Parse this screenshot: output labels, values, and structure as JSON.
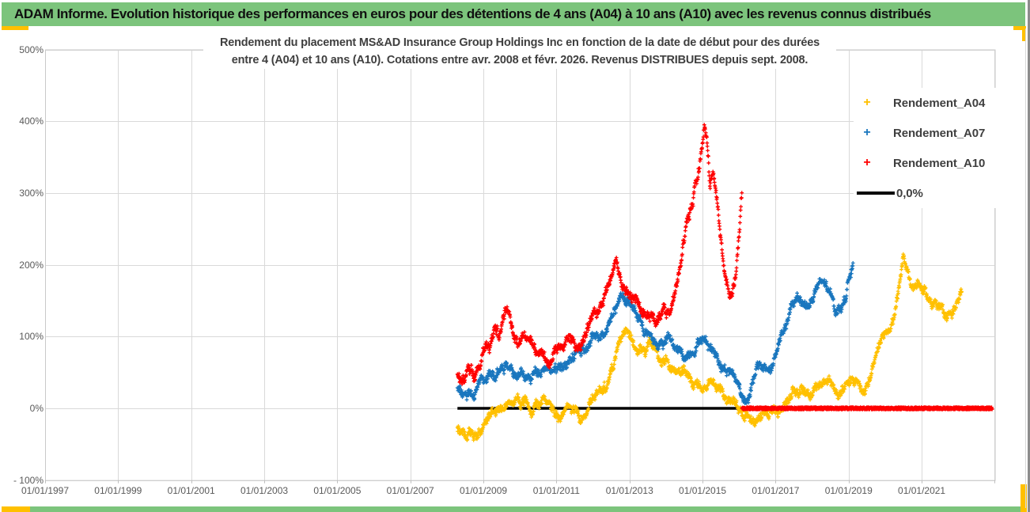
{
  "header": {
    "title": "ADAM Informe. Evolution historique des performances en euros pour des détentions de 4 ans (A04) à 10 ans (A10) avec les revenus connus distribués"
  },
  "chart": {
    "title_line1": "Rendement du placement MS&AD Insurance Group Holdings Inc en fonction de la date de début pour des durées",
    "title_line2": "entre 4 (A04) et 10 ans (A10). Cotations entre avr. 2008 et févr. 2026. Revenus DISTRIBUES depuis sept. 2008."
  },
  "colors": {
    "header_green": "#7cc47c",
    "accent_gold": "#ffc000",
    "grid": "#d9d9d9",
    "axis_text": "#595959",
    "title_text": "#3f3f3f",
    "series_a04": "#ffc000",
    "series_a07": "#1976be",
    "series_a10": "#ff0000",
    "zero_line": "#000000"
  },
  "chart_data": {
    "type": "scatter",
    "title": "Rendement du placement MS&AD Insurance Group Holdings Inc en fonction de la date de début pour des durées entre 4 (A04) et 10 ans (A10). Cotations entre avr. 2008 et févr. 2026. Revenus DISTRIBUES depuis sept. 2008.",
    "marker": "plus",
    "legend_position": "right-overlay",
    "x_axis": {
      "type": "date-start-of-holding",
      "tick_labels": [
        "01/01/1997",
        "01/01/1999",
        "01/01/2001",
        "01/01/2003",
        "01/01/2005",
        "01/01/2007",
        "01/01/2009",
        "01/01/2011",
        "01/01/2013",
        "01/01/2015",
        "01/01/2017",
        "01/01/2019",
        "01/01/2021"
      ],
      "tick_years": [
        1997,
        1999,
        2001,
        2003,
        2005,
        2007,
        2009,
        2011,
        2013,
        2015,
        2017,
        2019,
        2021
      ],
      "min_year": 1997,
      "max_year": 2023,
      "gridlines": true
    },
    "y_axis": {
      "tick_labels": [
        "500%",
        "400%",
        "300%",
        "200%",
        "100%",
        "0%",
        "- 100%"
      ],
      "tick_values": [
        500,
        400,
        300,
        200,
        100,
        0,
        -100
      ],
      "min": -100,
      "max": 500,
      "unit": "%",
      "gridlines": true
    },
    "series": [
      {
        "name": "Rendement_A04",
        "kind": "scatter",
        "color": "#ffc000",
        "holding_years": 4,
        "start": 2008.29,
        "end": 2022.1,
        "scatter_spread_pct": 9,
        "trend_points": [
          [
            2008.29,
            -28
          ],
          [
            2008.45,
            -38
          ],
          [
            2008.6,
            -34
          ],
          [
            2008.75,
            -44
          ],
          [
            2008.9,
            -37
          ],
          [
            2009.0,
            -26
          ],
          [
            2009.2,
            -12
          ],
          [
            2009.35,
            -4
          ],
          [
            2009.5,
            2
          ],
          [
            2009.65,
            8
          ],
          [
            2009.8,
            3
          ],
          [
            2010.0,
            2
          ],
          [
            2010.15,
            8
          ],
          [
            2010.3,
            2
          ],
          [
            2010.45,
            10
          ],
          [
            2010.6,
            14
          ],
          [
            2010.75,
            8
          ],
          [
            2010.9,
            -2
          ],
          [
            2011.05,
            -10
          ],
          [
            2011.2,
            -14
          ],
          [
            2011.35,
            0
          ],
          [
            2011.5,
            4
          ],
          [
            2011.65,
            -8
          ],
          [
            2011.8,
            -10
          ],
          [
            2011.95,
            5
          ],
          [
            2012.1,
            22
          ],
          [
            2012.25,
            30
          ],
          [
            2012.4,
            38
          ],
          [
            2012.55,
            55
          ],
          [
            2012.7,
            78
          ],
          [
            2012.85,
            95
          ],
          [
            2013.0,
            108
          ],
          [
            2013.1,
            95
          ],
          [
            2013.25,
            80
          ],
          [
            2013.4,
            72
          ],
          [
            2013.55,
            85
          ],
          [
            2013.7,
            78
          ],
          [
            2013.85,
            65
          ],
          [
            2014.0,
            70
          ],
          [
            2014.15,
            60
          ],
          [
            2014.3,
            52
          ],
          [
            2014.5,
            47
          ],
          [
            2014.7,
            38
          ],
          [
            2014.9,
            34
          ],
          [
            2015.1,
            30
          ],
          [
            2015.3,
            27
          ],
          [
            2015.5,
            22
          ],
          [
            2015.7,
            12
          ],
          [
            2015.9,
            7
          ],
          [
            2016.1,
            -2
          ],
          [
            2016.3,
            -9
          ],
          [
            2016.5,
            -14
          ],
          [
            2016.7,
            -8
          ],
          [
            2016.9,
            -12
          ],
          [
            2017.1,
            2
          ],
          [
            2017.3,
            15
          ],
          [
            2017.5,
            26
          ],
          [
            2017.7,
            32
          ],
          [
            2017.9,
            28
          ],
          [
            2018.1,
            35
          ],
          [
            2018.3,
            42
          ],
          [
            2018.5,
            36
          ],
          [
            2018.65,
            24
          ],
          [
            2018.8,
            18
          ],
          [
            2019.0,
            32
          ],
          [
            2019.2,
            38
          ],
          [
            2019.4,
            30
          ],
          [
            2019.6,
            45
          ],
          [
            2019.8,
            72
          ],
          [
            2019.95,
            92
          ],
          [
            2020.1,
            112
          ],
          [
            2020.25,
            132
          ],
          [
            2020.4,
            168
          ],
          [
            2020.5,
            200
          ],
          [
            2020.6,
            188
          ],
          [
            2020.75,
            172
          ],
          [
            2020.9,
            178
          ],
          [
            2021.05,
            168
          ],
          [
            2021.2,
            148
          ],
          [
            2021.35,
            152
          ],
          [
            2021.5,
            138
          ],
          [
            2021.65,
            126
          ],
          [
            2021.8,
            133
          ],
          [
            2021.95,
            146
          ],
          [
            2022.1,
            156
          ]
        ]
      },
      {
        "name": "Rendement_A07",
        "kind": "scatter",
        "color": "#1976be",
        "holding_years": 7,
        "start": 2008.29,
        "end": 2019.12,
        "scatter_spread_pct": 9,
        "trend_points": [
          [
            2008.29,
            28
          ],
          [
            2008.45,
            18
          ],
          [
            2008.6,
            30
          ],
          [
            2008.75,
            16
          ],
          [
            2008.9,
            28
          ],
          [
            2009.05,
            42
          ],
          [
            2009.2,
            50
          ],
          [
            2009.35,
            45
          ],
          [
            2009.5,
            58
          ],
          [
            2009.65,
            68
          ],
          [
            2009.8,
            60
          ],
          [
            2009.95,
            48
          ],
          [
            2010.1,
            42
          ],
          [
            2010.25,
            38
          ],
          [
            2010.4,
            48
          ],
          [
            2010.55,
            58
          ],
          [
            2010.7,
            68
          ],
          [
            2010.85,
            60
          ],
          [
            2011.0,
            52
          ],
          [
            2011.15,
            64
          ],
          [
            2011.3,
            58
          ],
          [
            2011.45,
            68
          ],
          [
            2011.6,
            80
          ],
          [
            2011.75,
            72
          ],
          [
            2011.9,
            85
          ],
          [
            2012.05,
            95
          ],
          [
            2012.2,
            105
          ],
          [
            2012.35,
            118
          ],
          [
            2012.5,
            135
          ],
          [
            2012.65,
            150
          ],
          [
            2012.8,
            164
          ],
          [
            2012.9,
            157
          ],
          [
            2013.0,
            148
          ],
          [
            2013.15,
            135
          ],
          [
            2013.3,
            124
          ],
          [
            2013.45,
            108
          ],
          [
            2013.6,
            95
          ],
          [
            2013.75,
            88
          ],
          [
            2013.9,
            92
          ],
          [
            2014.05,
            97
          ],
          [
            2014.2,
            85
          ],
          [
            2014.35,
            75
          ],
          [
            2014.5,
            70
          ],
          [
            2014.65,
            80
          ],
          [
            2014.8,
            92
          ],
          [
            2014.95,
            104
          ],
          [
            2015.1,
            97
          ],
          [
            2015.25,
            88
          ],
          [
            2015.4,
            75
          ],
          [
            2015.55,
            65
          ],
          [
            2015.7,
            58
          ],
          [
            2015.85,
            50
          ],
          [
            2016.0,
            32
          ],
          [
            2016.12,
            14
          ],
          [
            2016.25,
            22
          ],
          [
            2016.4,
            42
          ],
          [
            2016.55,
            58
          ],
          [
            2016.7,
            56
          ],
          [
            2016.85,
            52
          ],
          [
            2017.0,
            72
          ],
          [
            2017.15,
            98
          ],
          [
            2017.3,
            118
          ],
          [
            2017.45,
            138
          ],
          [
            2017.6,
            152
          ],
          [
            2017.75,
            150
          ],
          [
            2017.9,
            142
          ],
          [
            2018.05,
            158
          ],
          [
            2018.2,
            172
          ],
          [
            2018.35,
            170
          ],
          [
            2018.5,
            152
          ],
          [
            2018.65,
            136
          ],
          [
            2018.8,
            140
          ],
          [
            2018.95,
            162
          ],
          [
            2019.05,
            195
          ],
          [
            2019.12,
            215
          ]
        ]
      },
      {
        "name": "Rendement_A10",
        "kind": "scatter",
        "color": "#ff0000",
        "holding_years": 10,
        "start": 2008.29,
        "end": 2016.08,
        "scatter_spread_pct": 10,
        "zero_plateau": {
          "start": 2016.08,
          "end": 2022.93,
          "value": 0
        },
        "trend_points": [
          [
            2008.29,
            48
          ],
          [
            2008.45,
            36
          ],
          [
            2008.6,
            52
          ],
          [
            2008.75,
            40
          ],
          [
            2008.9,
            55
          ],
          [
            2009.05,
            72
          ],
          [
            2009.2,
            88
          ],
          [
            2009.3,
            100
          ],
          [
            2009.45,
            92
          ],
          [
            2009.55,
            114
          ],
          [
            2009.65,
            134
          ],
          [
            2009.75,
            112
          ],
          [
            2009.85,
            96
          ],
          [
            2010.0,
            100
          ],
          [
            2010.1,
            114
          ],
          [
            2010.2,
            104
          ],
          [
            2010.35,
            88
          ],
          [
            2010.5,
            76
          ],
          [
            2010.65,
            68
          ],
          [
            2010.8,
            62
          ],
          [
            2010.95,
            75
          ],
          [
            2011.1,
            85
          ],
          [
            2011.25,
            100
          ],
          [
            2011.4,
            92
          ],
          [
            2011.55,
            85
          ],
          [
            2011.7,
            95
          ],
          [
            2011.85,
            114
          ],
          [
            2012.0,
            134
          ],
          [
            2012.1,
            127
          ],
          [
            2012.25,
            147
          ],
          [
            2012.4,
            168
          ],
          [
            2012.55,
            192
          ],
          [
            2012.65,
            203
          ],
          [
            2012.8,
            184
          ],
          [
            2012.95,
            162
          ],
          [
            2013.1,
            147
          ],
          [
            2013.25,
            132
          ],
          [
            2013.4,
            122
          ],
          [
            2013.55,
            118
          ],
          [
            2013.7,
            132
          ],
          [
            2013.85,
            142
          ],
          [
            2014.0,
            132
          ],
          [
            2014.1,
            144
          ],
          [
            2014.25,
            174
          ],
          [
            2014.4,
            214
          ],
          [
            2014.55,
            252
          ],
          [
            2014.7,
            283
          ],
          [
            2014.85,
            318
          ],
          [
            2014.95,
            352
          ],
          [
            2015.05,
            392
          ],
          [
            2015.12,
            372
          ],
          [
            2015.2,
            310
          ],
          [
            2015.3,
            328
          ],
          [
            2015.4,
            283
          ],
          [
            2015.5,
            234
          ],
          [
            2015.6,
            194
          ],
          [
            2015.7,
            164
          ],
          [
            2015.8,
            150
          ],
          [
            2015.9,
            184
          ],
          [
            2016.0,
            238
          ],
          [
            2016.08,
            298
          ]
        ]
      },
      {
        "name": "0,0%",
        "kind": "reference-line",
        "color": "#000000",
        "value": 0,
        "start": 2008.29,
        "end": 2015.95
      }
    ]
  }
}
